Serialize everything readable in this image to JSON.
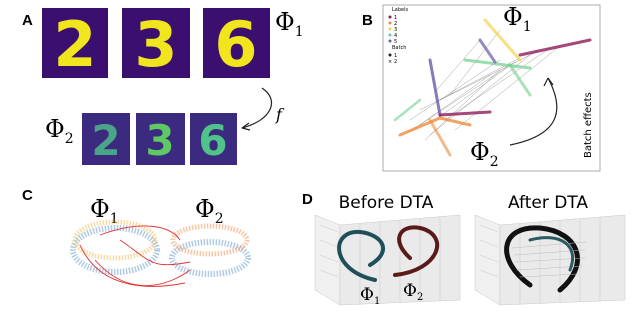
{
  "panel_a": {
    "label": "A",
    "top": {
      "digits": [
        "2",
        "3",
        "6"
      ],
      "phi": {
        "symbol": "Φ",
        "subscript": "1"
      }
    },
    "bottom": {
      "digits": [
        "2",
        "3",
        "6"
      ],
      "phi": {
        "symbol": "Φ",
        "subscript": "2"
      }
    },
    "map": "f"
  },
  "panel_b": {
    "label": "B",
    "legend": {
      "title": "Labels",
      "labels": [
        "1",
        "2",
        "3",
        "4",
        "5"
      ],
      "batch_title": "Batch",
      "batches": [
        "1",
        "2"
      ]
    },
    "phi_top": {
      "symbol": "Φ",
      "subscript": "1"
    },
    "phi_bottom": {
      "symbol": "Φ",
      "subscript": "2"
    },
    "annotation": "Batch effects"
  },
  "panel_c": {
    "label": "C",
    "phi_left": {
      "symbol": "Φ",
      "subscript": "1"
    },
    "phi_right": {
      "symbol": "Φ",
      "subscript": "2"
    }
  },
  "panel_d": {
    "label": "D",
    "before": "Before DTA",
    "after": "After DTA",
    "phi_left": {
      "symbol": "Φ",
      "subscript": "1"
    },
    "phi_right": {
      "symbol": "Φ",
      "subscript": "2"
    }
  }
}
